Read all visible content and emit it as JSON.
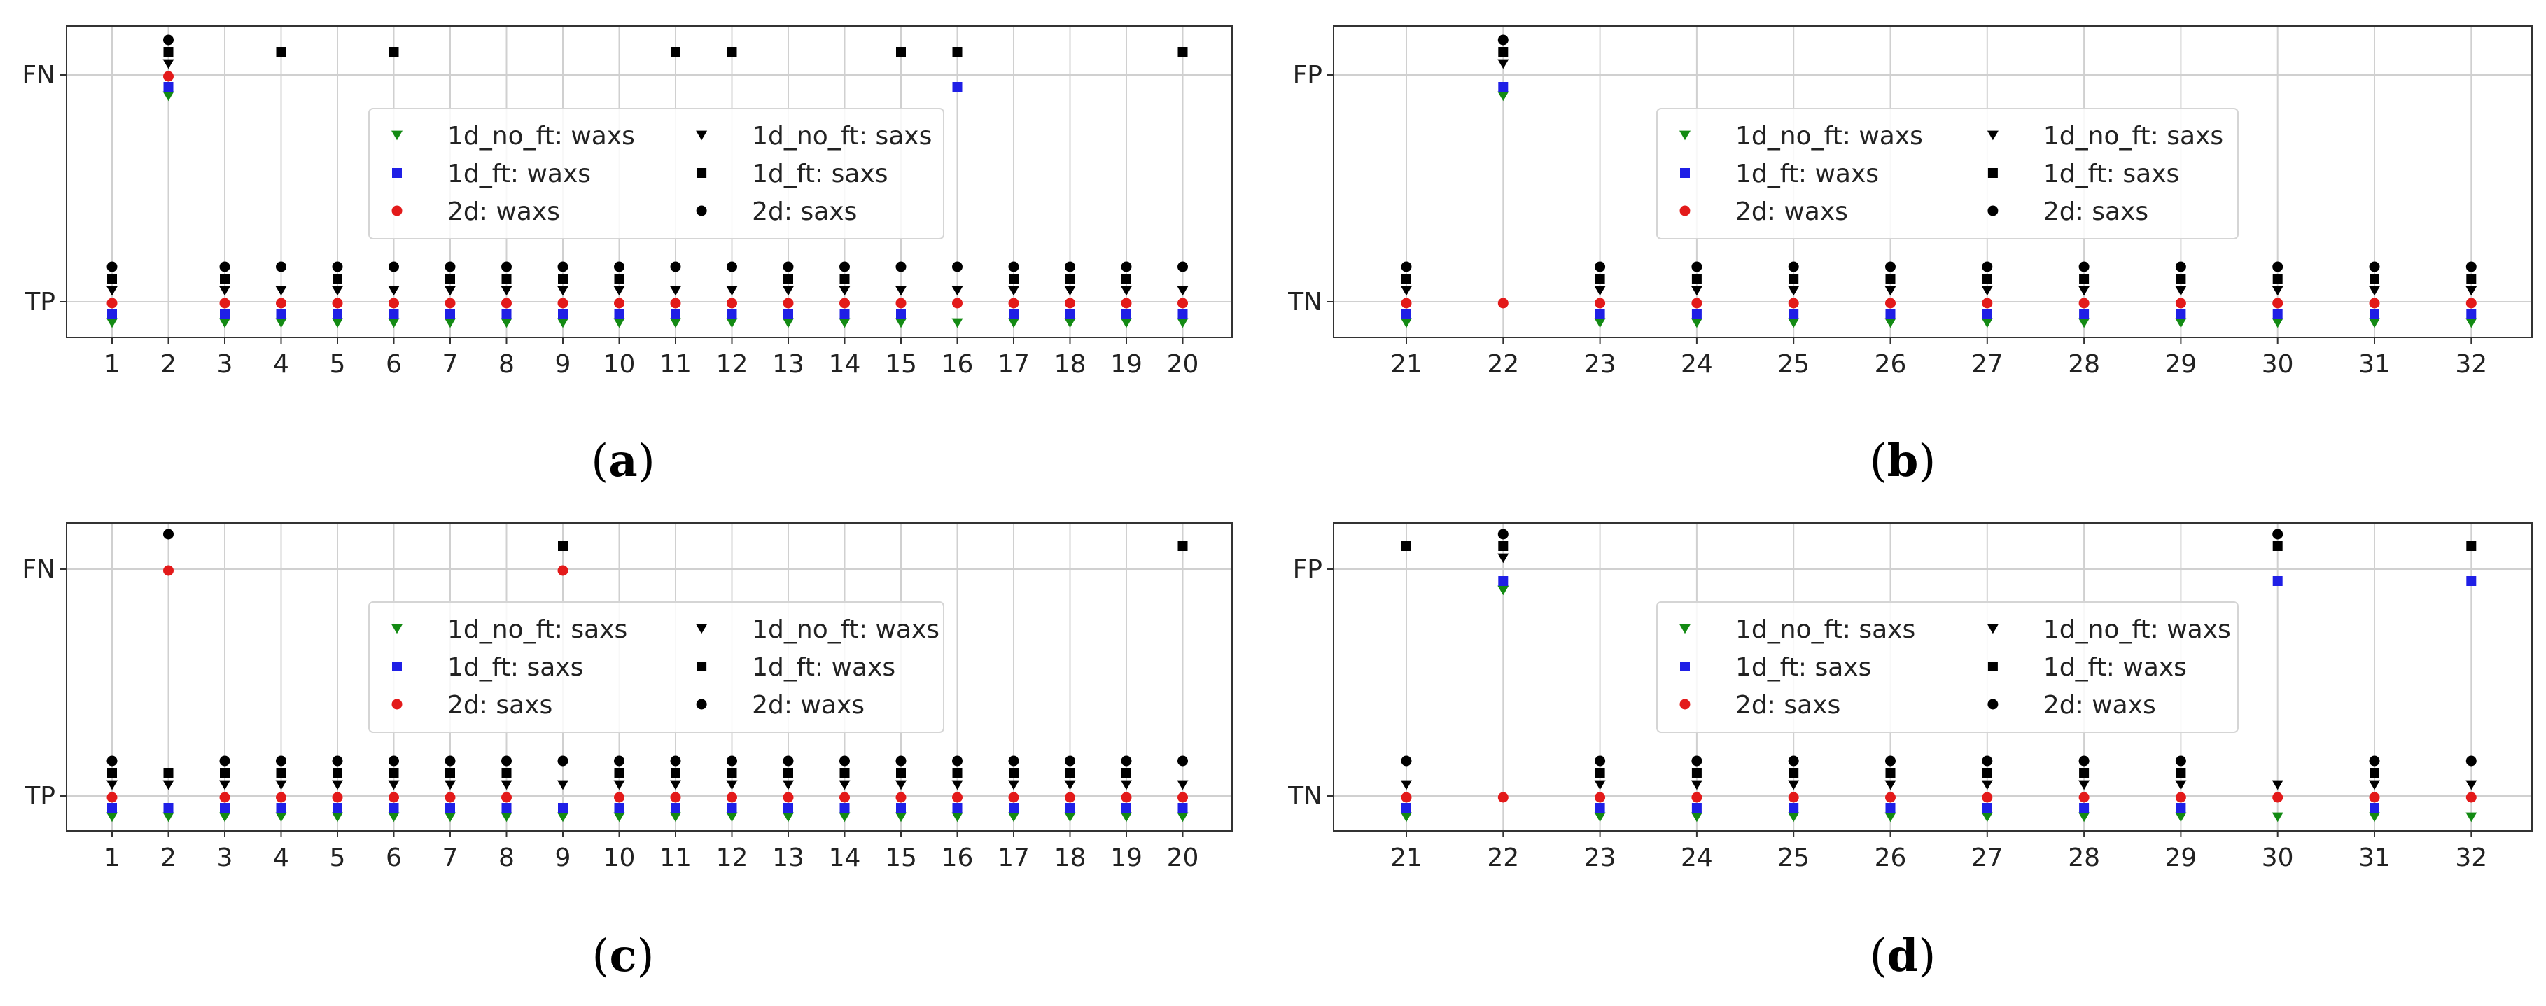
{
  "colors": {
    "one_d_no_ft": "#138a13",
    "one_d_ft": "#1f1fe6",
    "two_d": "#e31a1a",
    "black": "#000000"
  },
  "chart_data": [
    {
      "caption": "a",
      "type": "scatter",
      "x": [
        1,
        2,
        3,
        4,
        5,
        6,
        7,
        8,
        9,
        10,
        11,
        12,
        13,
        14,
        15,
        16,
        17,
        18,
        19,
        20
      ],
      "x_tick_labels": [
        "1",
        "2",
        "3",
        "4",
        "5",
        "6",
        "7",
        "8",
        "9",
        "10",
        "11",
        "12",
        "13",
        "14",
        "15",
        "16",
        "17",
        "18",
        "19",
        "20"
      ],
      "y_tick_labels": [
        "TP",
        "FN"
      ],
      "grid": true,
      "legend_location": "center",
      "series": [
        {
          "name": "1d_no_ft: waxs",
          "color": "one_d_no_ft",
          "marker": "triangle-down",
          "values": [
            "TP",
            "FN",
            "TP",
            "TP",
            "TP",
            "TP",
            "TP",
            "TP",
            "TP",
            "TP",
            "TP",
            "TP",
            "TP",
            "TP",
            "TP",
            "TP",
            "TP",
            "TP",
            "TP",
            "TP"
          ]
        },
        {
          "name": "1d_ft: waxs",
          "color": "one_d_ft",
          "marker": "square",
          "values": [
            "TP",
            "FN",
            "TP",
            "TP",
            "TP",
            "TP",
            "TP",
            "TP",
            "TP",
            "TP",
            "TP",
            "TP",
            "TP",
            "TP",
            "TP",
            "FN",
            "TP",
            "TP",
            "TP",
            "TP"
          ]
        },
        {
          "name": "2d: waxs",
          "color": "two_d",
          "marker": "circle",
          "values": [
            "TP",
            "FN",
            "TP",
            "TP",
            "TP",
            "TP",
            "TP",
            "TP",
            "TP",
            "TP",
            "TP",
            "TP",
            "TP",
            "TP",
            "TP",
            "TP",
            "TP",
            "TP",
            "TP",
            "TP"
          ]
        },
        {
          "name": "1d_no_ft: saxs",
          "color": "black",
          "marker": "triangle-down",
          "values": [
            "TP",
            "FN",
            "TP",
            "TP",
            "TP",
            "TP",
            "TP",
            "TP",
            "TP",
            "TP",
            "TP",
            "TP",
            "TP",
            "TP",
            "TP",
            "TP",
            "TP",
            "TP",
            "TP",
            "TP"
          ]
        },
        {
          "name": "1d_ft: saxs",
          "color": "black",
          "marker": "square",
          "values": [
            "TP",
            "FN",
            "TP",
            "FN",
            "TP",
            "FN",
            "TP",
            "TP",
            "TP",
            "TP",
            "FN",
            "FN",
            "TP",
            "TP",
            "FN",
            "FN",
            "TP",
            "TP",
            "TP",
            "FN"
          ]
        },
        {
          "name": "2d: saxs",
          "color": "black",
          "marker": "circle",
          "values": [
            "TP",
            "FN",
            "TP",
            "TP",
            "TP",
            "TP",
            "TP",
            "TP",
            "TP",
            "TP",
            "TP",
            "TP",
            "TP",
            "TP",
            "TP",
            "TP",
            "TP",
            "TP",
            "TP",
            "TP"
          ]
        }
      ]
    },
    {
      "caption": "b",
      "type": "scatter",
      "x": [
        21,
        22,
        23,
        24,
        25,
        26,
        27,
        28,
        29,
        30,
        31,
        32
      ],
      "x_tick_labels": [
        "21",
        "22",
        "23",
        "24",
        "25",
        "26",
        "27",
        "28",
        "29",
        "30",
        "31",
        "32"
      ],
      "y_tick_labels": [
        "TN",
        "FP"
      ],
      "grid": true,
      "legend_location": "upper center",
      "series": [
        {
          "name": "1d_no_ft: waxs",
          "color": "one_d_no_ft",
          "marker": "triangle-down",
          "values": [
            "TN",
            "FP",
            "TN",
            "TN",
            "TN",
            "TN",
            "TN",
            "TN",
            "TN",
            "TN",
            "TN",
            "TN"
          ]
        },
        {
          "name": "1d_ft: waxs",
          "color": "one_d_ft",
          "marker": "square",
          "values": [
            "TN",
            "FP",
            "TN",
            "TN",
            "TN",
            "TN",
            "TN",
            "TN",
            "TN",
            "TN",
            "TN",
            "TN"
          ]
        },
        {
          "name": "2d: waxs",
          "color": "two_d",
          "marker": "circle",
          "values": [
            "TN",
            "TN",
            "TN",
            "TN",
            "TN",
            "TN",
            "TN",
            "TN",
            "TN",
            "TN",
            "TN",
            "TN"
          ]
        },
        {
          "name": "1d_no_ft: saxs",
          "color": "black",
          "marker": "triangle-down",
          "values": [
            "TN",
            "FP",
            "TN",
            "TN",
            "TN",
            "TN",
            "TN",
            "TN",
            "TN",
            "TN",
            "TN",
            "TN"
          ]
        },
        {
          "name": "1d_ft: saxs",
          "color": "black",
          "marker": "square",
          "values": [
            "TN",
            "FP",
            "TN",
            "TN",
            "TN",
            "TN",
            "TN",
            "TN",
            "TN",
            "TN",
            "TN",
            "TN"
          ]
        },
        {
          "name": "2d: saxs",
          "color": "black",
          "marker": "circle",
          "values": [
            "TN",
            "FP",
            "TN",
            "TN",
            "TN",
            "TN",
            "TN",
            "TN",
            "TN",
            "TN",
            "TN",
            "TN"
          ]
        }
      ]
    },
    {
      "caption": "c",
      "type": "scatter",
      "x": [
        1,
        2,
        3,
        4,
        5,
        6,
        7,
        8,
        9,
        10,
        11,
        12,
        13,
        14,
        15,
        16,
        17,
        18,
        19,
        20
      ],
      "x_tick_labels": [
        "1",
        "2",
        "3",
        "4",
        "5",
        "6",
        "7",
        "8",
        "9",
        "10",
        "11",
        "12",
        "13",
        "14",
        "15",
        "16",
        "17",
        "18",
        "19",
        "20"
      ],
      "y_tick_labels": [
        "TP",
        "FN"
      ],
      "grid": true,
      "legend_location": "center",
      "series": [
        {
          "name": "1d_no_ft: saxs",
          "color": "one_d_no_ft",
          "marker": "triangle-down",
          "values": [
            "TP",
            "TP",
            "TP",
            "TP",
            "TP",
            "TP",
            "TP",
            "TP",
            "TP",
            "TP",
            "TP",
            "TP",
            "TP",
            "TP",
            "TP",
            "TP",
            "TP",
            "TP",
            "TP",
            "TP"
          ]
        },
        {
          "name": "1d_ft: saxs",
          "color": "one_d_ft",
          "marker": "square",
          "values": [
            "TP",
            "TP",
            "TP",
            "TP",
            "TP",
            "TP",
            "TP",
            "TP",
            "TP",
            "TP",
            "TP",
            "TP",
            "TP",
            "TP",
            "TP",
            "TP",
            "TP",
            "TP",
            "TP",
            "TP"
          ]
        },
        {
          "name": "2d: saxs",
          "color": "two_d",
          "marker": "circle",
          "values": [
            "TP",
            "FN",
            "TP",
            "TP",
            "TP",
            "TP",
            "TP",
            "TP",
            "FN",
            "TP",
            "TP",
            "TP",
            "TP",
            "TP",
            "TP",
            "TP",
            "TP",
            "TP",
            "TP",
            "TP"
          ]
        },
        {
          "name": "1d_no_ft: waxs",
          "color": "black",
          "marker": "triangle-down",
          "values": [
            "TP",
            "TP",
            "TP",
            "TP",
            "TP",
            "TP",
            "TP",
            "TP",
            "TP",
            "TP",
            "TP",
            "TP",
            "TP",
            "TP",
            "TP",
            "TP",
            "TP",
            "TP",
            "TP",
            "TP"
          ]
        },
        {
          "name": "1d_ft: waxs",
          "color": "black",
          "marker": "square",
          "values": [
            "TP",
            "TP",
            "TP",
            "TP",
            "TP",
            "TP",
            "TP",
            "TP",
            "FN",
            "TP",
            "TP",
            "TP",
            "TP",
            "TP",
            "TP",
            "TP",
            "TP",
            "TP",
            "TP",
            "FN"
          ]
        },
        {
          "name": "2d: waxs",
          "color": "black",
          "marker": "circle",
          "values": [
            "TP",
            "FN",
            "TP",
            "TP",
            "TP",
            "TP",
            "TP",
            "TP",
            "TP",
            "TP",
            "TP",
            "TP",
            "TP",
            "TP",
            "TP",
            "TP",
            "TP",
            "TP",
            "TP",
            "TP"
          ]
        }
      ]
    },
    {
      "caption": "d",
      "type": "scatter",
      "x": [
        21,
        22,
        23,
        24,
        25,
        26,
        27,
        28,
        29,
        30,
        31,
        32
      ],
      "x_tick_labels": [
        "21",
        "22",
        "23",
        "24",
        "25",
        "26",
        "27",
        "28",
        "29",
        "30",
        "31",
        "32"
      ],
      "y_tick_labels": [
        "TN",
        "FP"
      ],
      "grid": true,
      "legend_location": "upper center",
      "series": [
        {
          "name": "1d_no_ft: saxs",
          "color": "one_d_no_ft",
          "marker": "triangle-down",
          "values": [
            "TN",
            "FP",
            "TN",
            "TN",
            "TN",
            "TN",
            "TN",
            "TN",
            "TN",
            "TN",
            "TN",
            "TN"
          ]
        },
        {
          "name": "1d_ft: saxs",
          "color": "one_d_ft",
          "marker": "square",
          "values": [
            "TN",
            "FP",
            "TN",
            "TN",
            "TN",
            "TN",
            "TN",
            "TN",
            "TN",
            "FP",
            "TN",
            "FP"
          ]
        },
        {
          "name": "2d: saxs",
          "color": "two_d",
          "marker": "circle",
          "values": [
            "TN",
            "TN",
            "TN",
            "TN",
            "TN",
            "TN",
            "TN",
            "TN",
            "TN",
            "TN",
            "TN",
            "TN"
          ]
        },
        {
          "name": "1d_no_ft: waxs",
          "color": "black",
          "marker": "triangle-down",
          "values": [
            "TN",
            "FP",
            "TN",
            "TN",
            "TN",
            "TN",
            "TN",
            "TN",
            "TN",
            "TN",
            "TN",
            "TN"
          ]
        },
        {
          "name": "1d_ft: waxs",
          "color": "black",
          "marker": "square",
          "values": [
            "FP",
            "FP",
            "TN",
            "TN",
            "TN",
            "TN",
            "TN",
            "TN",
            "TN",
            "FP",
            "TN",
            "FP"
          ]
        },
        {
          "name": "2d: waxs",
          "color": "black",
          "marker": "circle",
          "values": [
            "TN",
            "FP",
            "TN",
            "TN",
            "TN",
            "TN",
            "TN",
            "TN",
            "TN",
            "FP",
            "TN",
            "TN"
          ]
        }
      ]
    }
  ]
}
